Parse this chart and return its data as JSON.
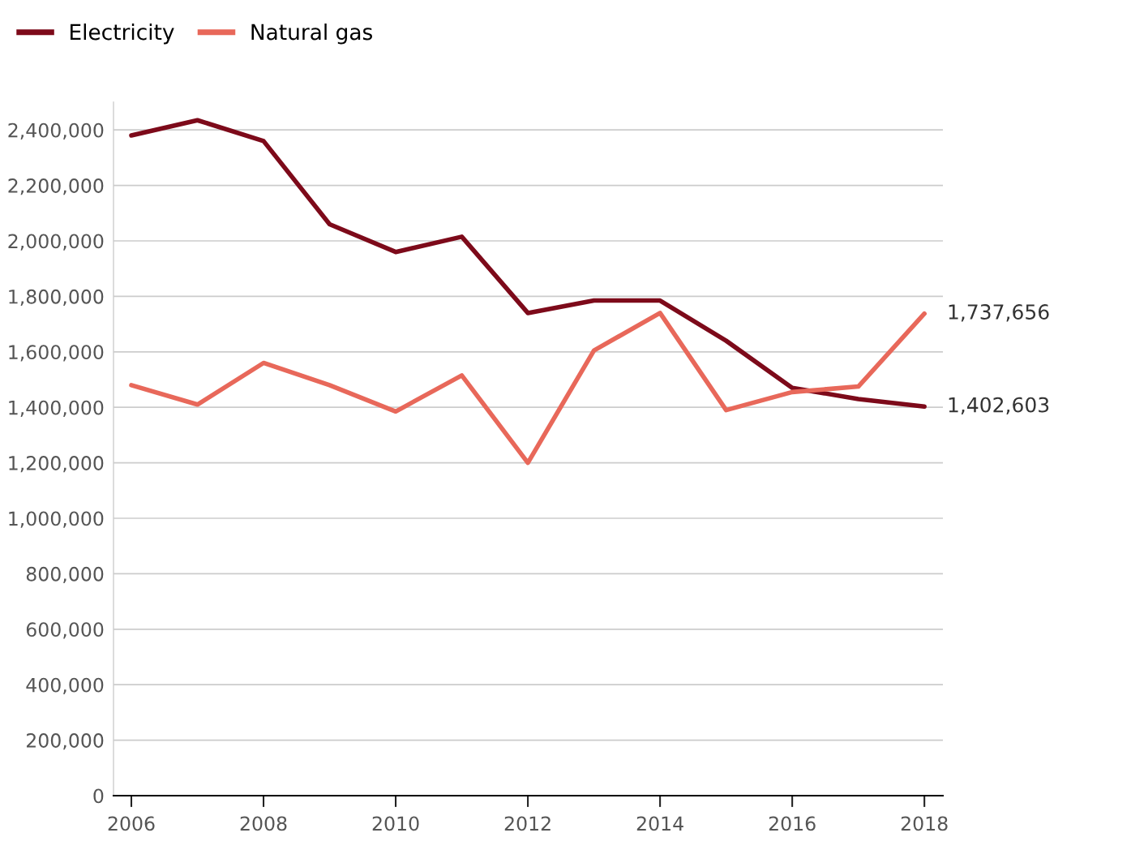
{
  "chart_data": {
    "type": "line",
    "x": [
      2006,
      2007,
      2008,
      2009,
      2010,
      2011,
      2012,
      2013,
      2014,
      2015,
      2016,
      2017,
      2018
    ],
    "series": [
      {
        "name": "Electricity",
        "color": "#7d0a1a",
        "values": [
          2380000,
          2435000,
          2360000,
          2060000,
          1960000,
          2015000,
          1740000,
          1785000,
          1785000,
          1640000,
          1470000,
          1430000,
          1402603
        ]
      },
      {
        "name": "Natural gas",
        "color": "#e8685a",
        "values": [
          1480000,
          1410000,
          1560000,
          1480000,
          1385000,
          1515000,
          1200000,
          1605000,
          1740000,
          1390000,
          1455000,
          1475000,
          1737656
        ]
      }
    ],
    "annotations": [
      {
        "text": "1,737,656",
        "x": 2018,
        "y": 1737656
      },
      {
        "text": "1,402,603",
        "x": 2018,
        "y": 1402603
      }
    ],
    "xlim": [
      2005.73,
      2018.28
    ],
    "xticks": [
      2006,
      2008,
      2010,
      2012,
      2014,
      2016,
      2018
    ],
    "ylim": [
      0,
      2500000
    ],
    "yticks": [
      {
        "value": 0,
        "label": "0"
      },
      {
        "value": 200000,
        "label": "200,000"
      },
      {
        "value": 400000,
        "label": "400,000"
      },
      {
        "value": 600000,
        "label": "600,000"
      },
      {
        "value": 800000,
        "label": "800,000"
      },
      {
        "value": 1000000,
        "label": "1,000,000"
      },
      {
        "value": 1200000,
        "label": "1,200,000"
      },
      {
        "value": 1400000,
        "label": "1,400,000"
      },
      {
        "value": 1600000,
        "label": "1,600,000"
      },
      {
        "value": 1800000,
        "label": "1,800,000"
      },
      {
        "value": 2000000,
        "label": "2,000,000"
      },
      {
        "value": 2200000,
        "label": "2,200,000"
      },
      {
        "value": 2400000,
        "label": "2,400,000"
      }
    ],
    "grid": "y",
    "legend": "top left",
    "marker": "none",
    "line_style": "solid"
  }
}
